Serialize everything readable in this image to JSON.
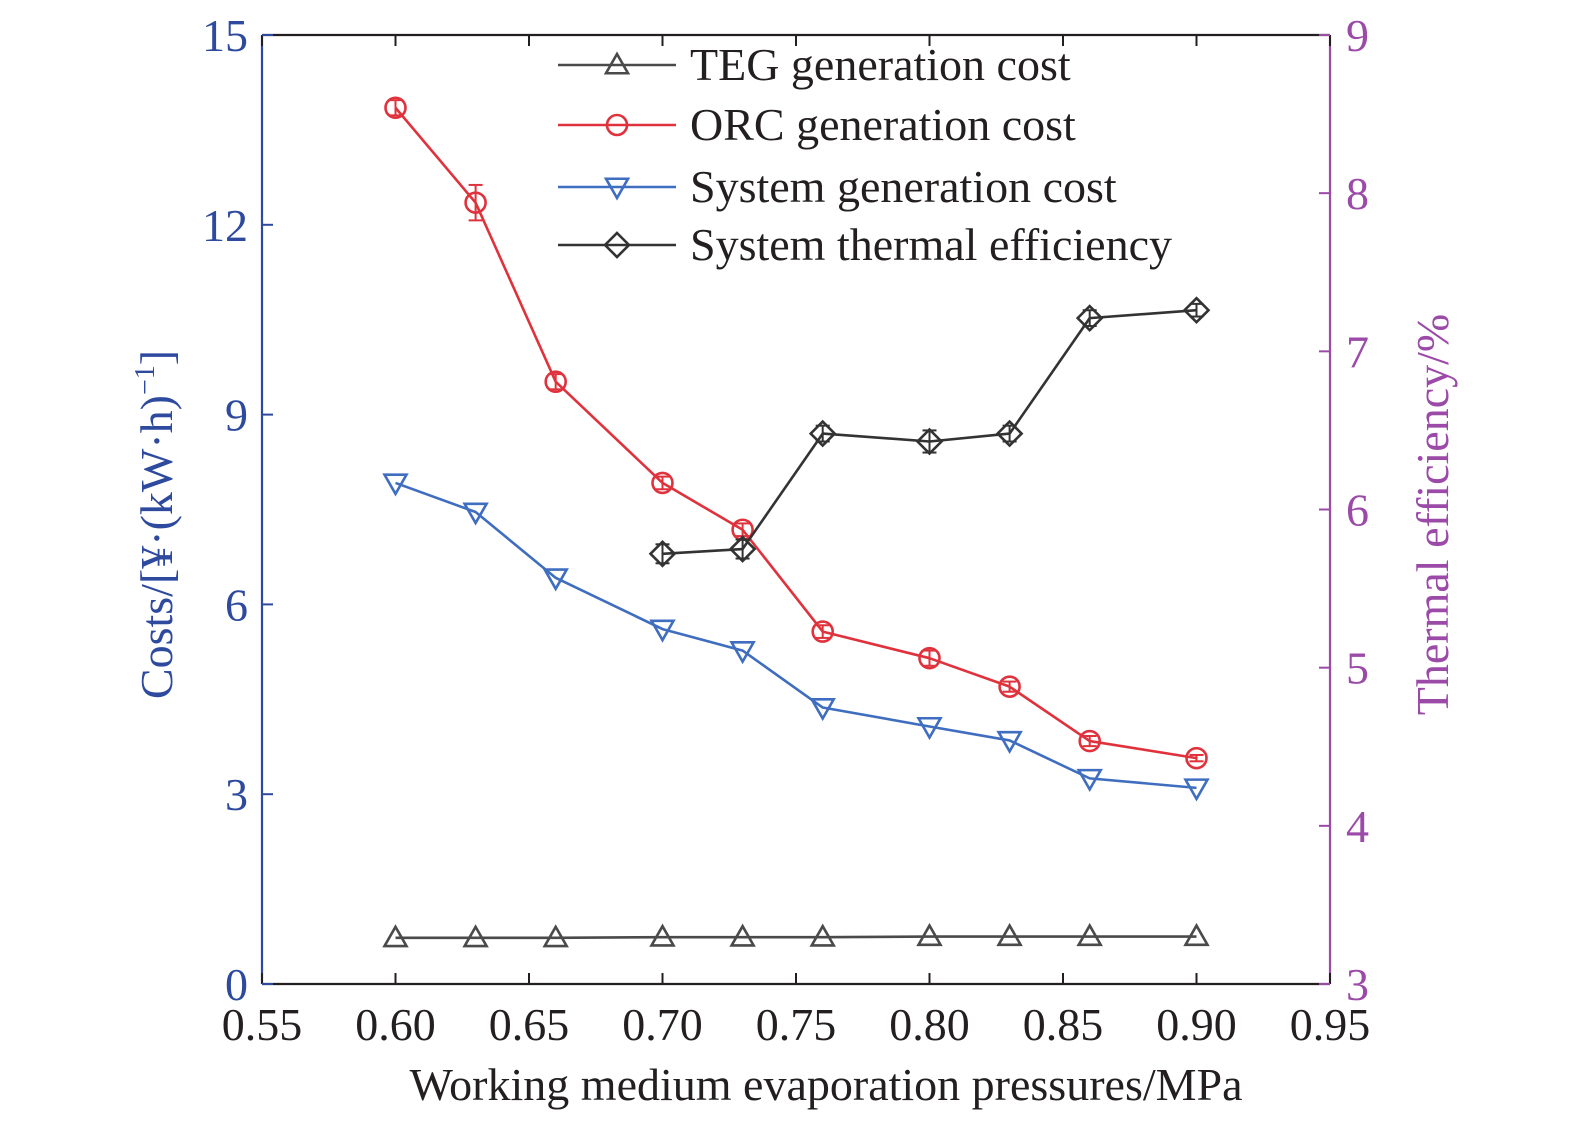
{
  "chart_data": {
    "type": "line",
    "x": [
      0.6,
      0.63,
      0.66,
      0.7,
      0.73,
      0.76,
      0.8,
      0.83,
      0.86,
      0.9
    ],
    "xlabel": "Working medium evaporation pressures/MPa",
    "xlim": [
      0.55,
      0.95
    ],
    "xticks": [
      "0.55",
      "0.60",
      "0.65",
      "0.70",
      "0.75",
      "0.80",
      "0.85",
      "0.90",
      "0.95"
    ],
    "ylabel_left_parts": [
      "Costs/[¥·(kW·h)",
      "−1",
      "]"
    ],
    "ylim_left": [
      0,
      15
    ],
    "yticks_left": [
      "0",
      "3",
      "6",
      "9",
      "12",
      "15"
    ],
    "ylabel_right": "Thermal efficiency/%",
    "ylim_right": [
      3,
      9
    ],
    "yticks_right": [
      "3",
      "4",
      "5",
      "6",
      "7",
      "8",
      "9"
    ],
    "legend_position": "top-center",
    "series": [
      {
        "name": "TEG generation cost",
        "axis": "left",
        "marker": "triangle-up",
        "color": "#4a4a4a",
        "values": [
          0.73,
          0.73,
          0.73,
          0.74,
          0.74,
          0.74,
          0.75,
          0.75,
          0.75,
          0.75
        ]
      },
      {
        "name": "ORC generation cost",
        "axis": "left",
        "marker": "circle",
        "color": "#e0323c",
        "values": [
          13.85,
          12.35,
          9.52,
          7.92,
          7.18,
          5.57,
          5.15,
          4.7,
          3.84,
          3.57
        ],
        "errors": [
          0.12,
          0.28,
          0.12,
          0.1,
          0.1,
          0.1,
          0.12,
          0.08,
          0.08,
          0.05
        ]
      },
      {
        "name": "System generation cost",
        "axis": "left",
        "marker": "triangle-down",
        "color": "#3f6dbf",
        "values": [
          7.92,
          7.46,
          6.42,
          5.61,
          5.27,
          4.37,
          4.07,
          3.85,
          3.25,
          3.1
        ]
      },
      {
        "name": "System thermal efficiency",
        "axis": "right",
        "marker": "diamond",
        "color": "#333333",
        "x": [
          0.7,
          0.73,
          0.76,
          0.8,
          0.83,
          0.86,
          0.9
        ],
        "values": [
          5.72,
          5.75,
          6.48,
          6.43,
          6.48,
          7.21,
          7.26
        ],
        "errors": [
          0.06,
          0.06,
          0.05,
          0.07,
          0.05,
          0.05,
          0.04
        ]
      }
    ],
    "colors": {
      "left_axis": "#2e4a9e",
      "right_axis": "#9b4aa8",
      "frame": "#231f20"
    }
  }
}
